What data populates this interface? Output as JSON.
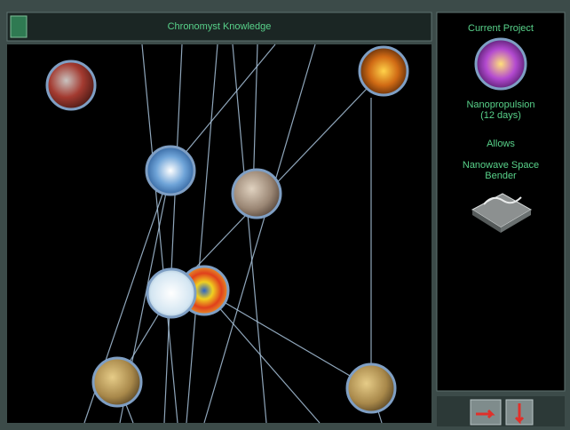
{
  "header": {
    "title": "Chronomyst Knowledge"
  },
  "sidebar": {
    "heading": "Current Project",
    "project_name": [
      "Nanopropulsion",
      "(12 days)"
    ],
    "allows_label": "Allows",
    "allows_item": [
      "Nanowave Space",
      "Bender"
    ]
  }
}
